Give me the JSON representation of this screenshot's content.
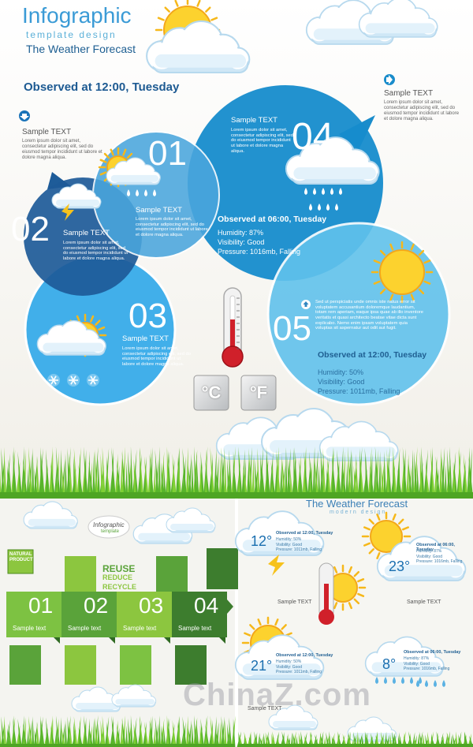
{
  "header": {
    "title": "Infographic",
    "subtitle": "template design",
    "tagline": "The Weather Forecast"
  },
  "observed": "Observed at 12:00, Tuesday",
  "notes": [
    {
      "title": "Sample TEXT",
      "body": "Lorem ipsum dolor sit amet, consectetur adipiscing elit, sed do eiusmod tempor incididunt ut labore et dolore magna aliqua."
    },
    {
      "title": "Sample TEXT",
      "body": "Lorem ipsum dolor sit amet, consectetur adipiscing elit, sed do eiusmod tempor incididunt ut labore et dolore magna aliqua."
    }
  ],
  "circles": [
    {
      "number": "01",
      "title": "Sample TEXT",
      "body": "Lorem ipsum dolor sit amet, consectetur adipiscing elit, sed do eiusmod tempor incididunt ut labore et dolore magna aliqua."
    },
    {
      "number": "02",
      "title": "Sample TEXT",
      "body": "Lorem ipsum dolor sit amet, consectetur adipiscing elit, sed do eiusmod tempor incididunt ut labore et dolore magna aliqua."
    },
    {
      "number": "03",
      "title": "Sample TEXT",
      "body": "Lorem ipsum dolor sit amet, consectetur adipiscing elit, sed do eiusmod tempor incididunt ut labore et dolore magna aliqua."
    },
    {
      "number": "04",
      "title": "Sample TEXT",
      "body": "Lorem ipsum dolor sit amet, consectetur adipiscing elit, sed do eiusmod tempor incididunt ut labore et dolore magna aliqua.",
      "observed": "Observed at 06:00, Tuesday",
      "details": [
        "Humidity: 87%",
        "Visibility: Good",
        "Pressure: 1016mb, Falling"
      ]
    },
    {
      "number": "05",
      "body": "Sed ut perspiciatis unde omnis iste natus error sit voluptatem accusantium doloremque laudantium, totam rem aperiam, eaque ipsa quae ab illo inventore veritatis et quasi architecto beatae vitae dicta sunt explicabo. Nemo enim ipsam voluptatem quia voluptas sit aspernatur aut odit aut fugit.",
      "observed": "Observed at 12:00, Tuesday",
      "details": [
        "Humidity: 50%",
        "Visibility: Good",
        "Pressure: 1011mb, Falling"
      ]
    }
  ],
  "units": [
    "°C",
    "°F"
  ],
  "eco_panel": {
    "badge": "NATURAL PRODUCT",
    "logo": "Infographic",
    "logo_sub": "template",
    "slogan": [
      "REUSE",
      "REDUCE",
      "RECYCLE"
    ],
    "steps": [
      {
        "number": "01",
        "label": "Sample text"
      },
      {
        "number": "02",
        "label": "Sample text"
      },
      {
        "number": "03",
        "label": "Sample text"
      },
      {
        "number": "04",
        "label": "Sample text"
      }
    ]
  },
  "forecast_panel": {
    "title": "The Weather Forecast",
    "subtitle": "modern design",
    "cards": [
      {
        "temp": "12°",
        "observed": "Observed at 12:00, Tuesday",
        "details": [
          "Humidity: 50%",
          "Visibility: Good",
          "Pressure: 1011mb, Falling"
        ]
      },
      {
        "temp": "23°",
        "observed": "Observed at 06:00, Tuesday",
        "details": [
          "Humidity: 87%",
          "Visibility: Good",
          "Pressure: 1016mb, Falling"
        ]
      },
      {
        "temp": "21°",
        "observed": "Observed at 12:00, Tuesday",
        "details": [
          "Humidity: 50%",
          "Visibility: Good",
          "Pressure: 1011mb, Falling"
        ]
      },
      {
        "temp": "8°",
        "observed": "Observed at 06:00, Tuesday",
        "details": [
          "Humidity: 87%",
          "Visibility: Good",
          "Pressure: 1016mb, Falling"
        ]
      }
    ],
    "notes": [
      "Sample TEXT",
      "Sample TEXT",
      "Sample TEXT"
    ]
  },
  "watermark": "ChinaZ.com"
}
